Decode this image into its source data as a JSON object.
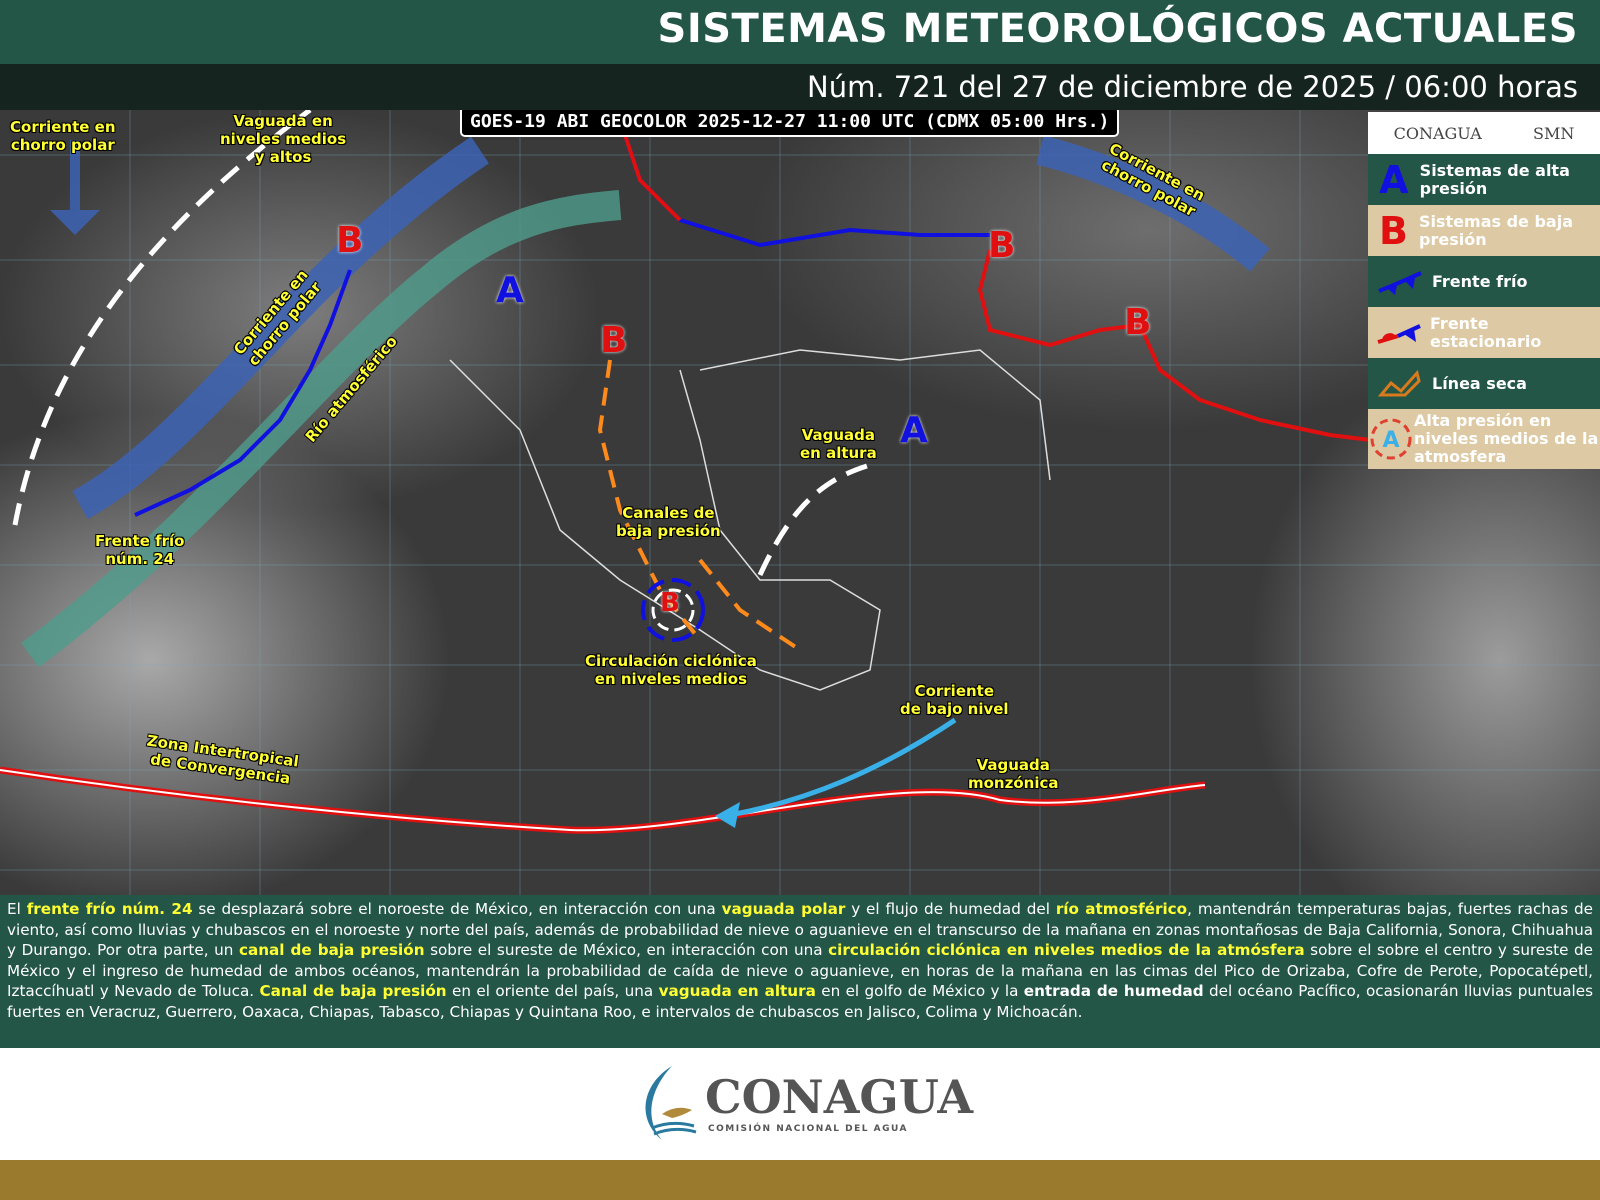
{
  "header": {
    "title": "SISTEMAS METEOROLÓGICOS ACTUALES",
    "subtitle": "Núm. 721 del 27 de diciembre de 2025 / 06:00 horas"
  },
  "map": {
    "satellite_label": "GOES-19 ABI GEOCOLOR 2025-12-27 11:00 UTC (CDMX  05:00 Hrs.)",
    "labels": {
      "jet_polar_nw": "Corriente en\nchorro polar",
      "vaguada_medios": "Vaguada en\nniveles medios\ny altos",
      "jet_polar_mid": "Corriente en\nchorro polar",
      "rio": "Río atmosférico",
      "frente": "Frente frío\nnúm. 24",
      "jet_polar_ne": "Corriente en\nchorro polar",
      "vaguada_altura": "Vaguada\nen altura",
      "canales": "Canales de\nbaja presión",
      "circulacion": "Circulación ciclónica\nen niveles medios",
      "corriente_bajo": "Corriente\nde bajo nivel",
      "zona": "Zona Intertropical\nde Convergencia",
      "monzonica": "Vaguada\nmonzónica"
    },
    "high_symbol": "A",
    "low_symbol": "B"
  },
  "legend": {
    "logo_left": "CONAGUA",
    "logo_right": "SMN",
    "items": [
      {
        "symbol": "A",
        "label": "Sistemas de alta presión"
      },
      {
        "symbol": "B",
        "label": "Sistemas de baja presión"
      },
      {
        "symbol": "cold-front",
        "label": "Frente frío"
      },
      {
        "symbol": "stationary-front",
        "label": "Frente estacionario"
      },
      {
        "symbol": "dry-line",
        "label": "Línea seca"
      },
      {
        "symbol": "A",
        "label": "Alta presión en niveles medios de la atmosfera"
      }
    ]
  },
  "colors": {
    "green": "#235646",
    "tan": "#ddc9a3",
    "gold": "#9a7a2d",
    "highlight": "#ffff33",
    "high": "#1010e0",
    "low": "#e01010"
  },
  "text": {
    "p": [
      {
        "t": "El "
      },
      {
        "h": "frente frío núm. 24"
      },
      {
        "t": " se desplazará sobre el noroeste de México, en interacción con una "
      },
      {
        "h": "vaguada polar"
      },
      {
        "t": " y el flujo de humedad del "
      },
      {
        "h": "río atmosférico"
      },
      {
        "t": ", mantendrán temperaturas bajas, fuertes rachas de viento, así como lluvias y chubascos en el noroeste y norte del país, además de probabilidad de nieve o aguanieve en el transcurso de la mañana en zonas montañosas de Baja California, Sonora, Chihuahua y Durango. Por otra parte, un "
      },
      {
        "h": "canal de baja presión"
      },
      {
        "t": " sobre el sureste de México, en interacción con una "
      },
      {
        "h": "circulación ciclónica en niveles medios de la atmósfera"
      },
      {
        "t": " sobre el sobre el centro y sureste de México y el ingreso de humedad de ambos océanos, mantendrán la probabilidad de caída de nieve o aguanieve, en horas de la mañana en las cimas del Pico de Orizaba, Cofre de Perote, Popocatépetl, Iztaccíhuatl y Nevado de Toluca. "
      },
      {
        "h": "Canal de baja presión"
      },
      {
        "t": " en el oriente del país, una "
      },
      {
        "h": "vaguada en altura"
      },
      {
        "t": " en el golfo de México y la "
      },
      {
        "b": "entrada de humedad"
      },
      {
        "t": " del océano Pacífico, ocasionarán lluvias puntuales fuertes en Veracruz, Guerrero, Oaxaca, Chiapas, Tabasco, Chiapas y Quintana Roo, e intervalos de chubascos en Jalisco, Colima y Michoacán."
      }
    ]
  },
  "footer": {
    "logo": "CONAGUA",
    "logo_sub": "COMISIÓN NACIONAL DEL AGUA"
  }
}
